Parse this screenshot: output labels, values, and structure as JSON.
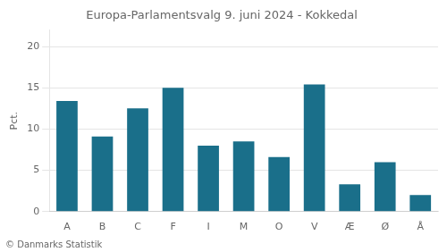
{
  "chart_data": {
    "type": "bar",
    "title": "Europa-Parlamentsvalg 9. juni 2024 - Kokkedal",
    "categories": [
      "A",
      "B",
      "C",
      "F",
      "I",
      "M",
      "O",
      "V",
      "Æ",
      "Ø",
      "Å"
    ],
    "values": [
      13.4,
      9.1,
      12.5,
      15.0,
      8.0,
      8.5,
      6.6,
      15.4,
      3.3,
      6.0,
      2.0
    ],
    "color": "#1a6f8a",
    "ylabel": "Pct.",
    "ylim": [
      0,
      22
    ],
    "yticks": [
      0,
      5,
      10,
      15,
      20
    ],
    "grid": true,
    "annotations": [
      "© Danmarks Statistik"
    ]
  }
}
